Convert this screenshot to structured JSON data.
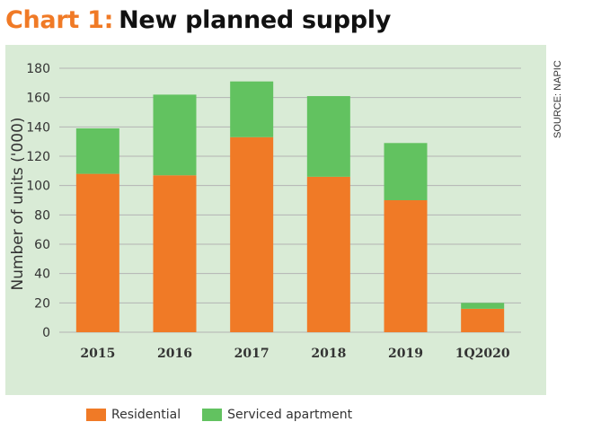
{
  "header": {
    "prefix": "Chart 1:",
    "title": "New planned supply"
  },
  "source": "SOURCE: NAPIC",
  "colors": {
    "accent": "#f07a26",
    "residential": "#f07a26",
    "serviced": "#62c260",
    "panel_background": "#d9ebd6",
    "gridline": "#b3b3b3"
  },
  "chart_data": {
    "type": "bar",
    "stacked": true,
    "title": "",
    "xlabel": "",
    "ylabel": "Number of units ('000)",
    "categories": [
      "2015",
      "2016",
      "2017",
      "2018",
      "2019",
      "1Q2020"
    ],
    "series": [
      {
        "name": "Residential",
        "values": [
          108,
          107,
          133,
          106,
          90,
          16
        ]
      },
      {
        "name": "Serviced apartment",
        "values": [
          31,
          55,
          38,
          55,
          39,
          4
        ]
      }
    ],
    "ylim": [
      0,
      180
    ],
    "yticks": [
      0,
      20,
      40,
      60,
      80,
      100,
      120,
      140,
      160,
      180
    ],
    "grid": true,
    "legend_position": "bottom-left"
  }
}
